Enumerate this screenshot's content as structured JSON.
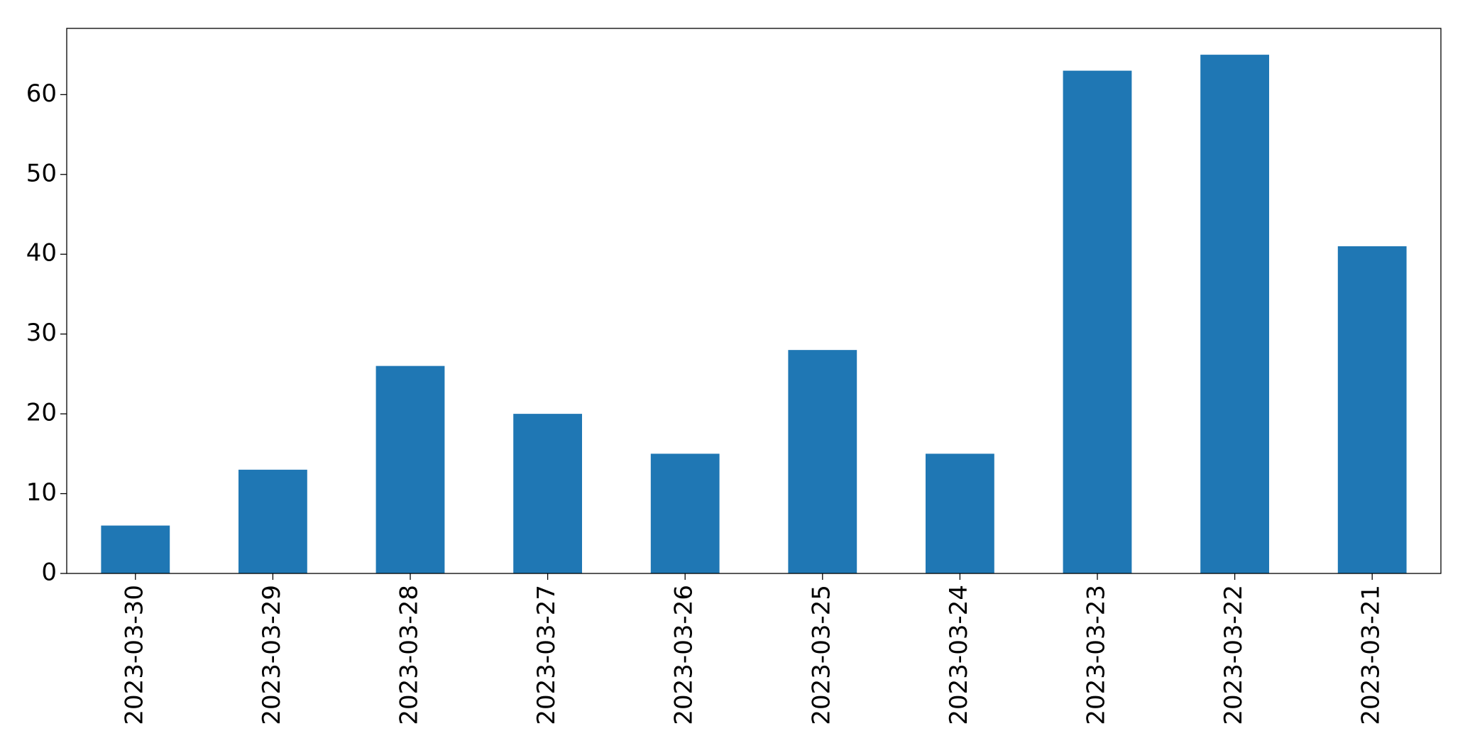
{
  "chart_data": {
    "type": "bar",
    "categories": [
      "2023-03-30",
      "2023-03-29",
      "2023-03-28",
      "2023-03-27",
      "2023-03-26",
      "2023-03-25",
      "2023-03-24",
      "2023-03-23",
      "2023-03-22",
      "2023-03-21"
    ],
    "values": [
      6,
      13,
      26,
      20,
      15,
      28,
      15,
      63,
      65,
      41
    ],
    "color": "#1f77b4",
    "ylim": [
      0,
      68.3
    ],
    "yticks": [
      0,
      10,
      20,
      30,
      40,
      50,
      60
    ],
    "grid": false
  }
}
